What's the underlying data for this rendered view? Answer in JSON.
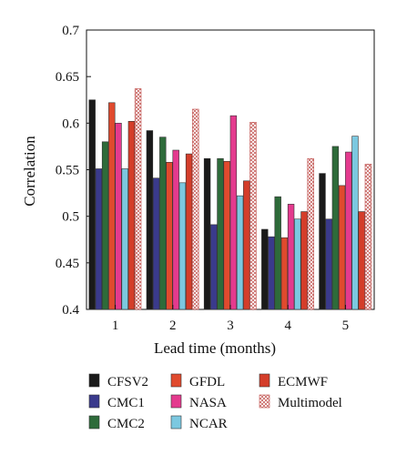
{
  "chart_data": {
    "type": "bar",
    "title": "",
    "xlabel": "Lead time (months)",
    "ylabel": "Correlation",
    "categories": [
      "1",
      "2",
      "3",
      "4",
      "5"
    ],
    "ylim": [
      0.4,
      0.7
    ],
    "yticks": [
      "0.4",
      "0.45",
      "0.5",
      "0.55",
      "0.6",
      "0.65",
      "0.7"
    ],
    "grid": false,
    "legend_position": "bottom",
    "series": [
      {
        "name": "CFSV2",
        "color": "#1a1a1a",
        "values": [
          0.625,
          0.592,
          0.562,
          0.486,
          0.546
        ]
      },
      {
        "name": "CMC1",
        "color": "#3a3a8c",
        "values": [
          0.551,
          0.541,
          0.491,
          0.478,
          0.497
        ]
      },
      {
        "name": "CMC2",
        "color": "#2e6b3a",
        "values": [
          0.58,
          0.585,
          0.562,
          0.521,
          0.575
        ]
      },
      {
        "name": "GFDL",
        "color": "#e04a2e",
        "values": [
          0.622,
          0.558,
          0.559,
          0.477,
          0.533
        ]
      },
      {
        "name": "NASA",
        "color": "#e43a8e",
        "values": [
          0.6,
          0.571,
          0.608,
          0.513,
          0.569
        ]
      },
      {
        "name": "NCAR",
        "color": "#7cc8e0",
        "values": [
          0.551,
          0.536,
          0.522,
          0.497,
          0.586
        ]
      },
      {
        "name": "ECMWF",
        "color": "#d43d2a",
        "values": [
          0.602,
          0.567,
          0.538,
          0.505,
          0.505
        ]
      },
      {
        "name": "Multimodel",
        "color": "#c0504d",
        "pattern": "crosshatch",
        "values": [
          0.637,
          0.615,
          0.601,
          0.562,
          0.556
        ]
      }
    ],
    "legend": [
      [
        "CFSV2",
        "GFDL",
        "ECMWF"
      ],
      [
        "CMC1",
        "NASA",
        "Multimodel"
      ],
      [
        "CMC2",
        "NCAR"
      ]
    ]
  }
}
